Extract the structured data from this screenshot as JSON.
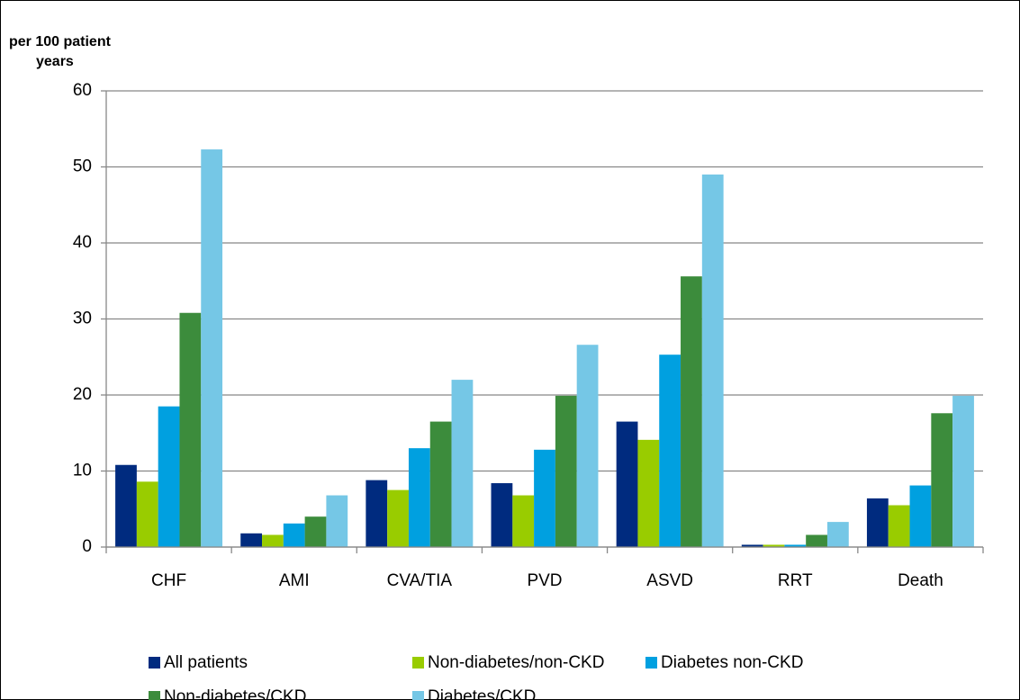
{
  "chart_data": {
    "type": "bar",
    "y_label": [
      "per 100 patient",
      "years"
    ],
    "categories": [
      "CHF",
      "AMI",
      "CVA/TIA",
      "PVD",
      "ASVD",
      "RRT",
      "Death"
    ],
    "series": [
      {
        "name": "All patients",
        "color": "#002b7f",
        "values": [
          10.8,
          1.8,
          8.8,
          8.4,
          16.5,
          0.3,
          6.4
        ]
      },
      {
        "name": "Non-diabetes/non-CKD",
        "color": "#99cc00",
        "values": [
          8.6,
          1.6,
          7.5,
          6.8,
          14.1,
          0.3,
          5.5
        ]
      },
      {
        "name": "Diabetes non-CKD",
        "color": "#00a0e0",
        "values": [
          18.5,
          3.1,
          13.0,
          12.8,
          25.3,
          0.3,
          8.1
        ]
      },
      {
        "name": "Non-diabetes/CKD",
        "color": "#3c8c3c",
        "values": [
          30.8,
          4.0,
          16.5,
          19.9,
          35.6,
          1.6,
          17.6
        ]
      },
      {
        "name": "Diabetes/CKD",
        "color": "#75c7e6",
        "values": [
          52.3,
          6.8,
          22.0,
          26.6,
          49.0,
          3.3,
          19.9
        ]
      }
    ],
    "ylim": [
      0,
      60
    ],
    "yticks": [
      0,
      10,
      20,
      30,
      40,
      50,
      60
    ],
    "grid": true,
    "legend": "bottom"
  }
}
